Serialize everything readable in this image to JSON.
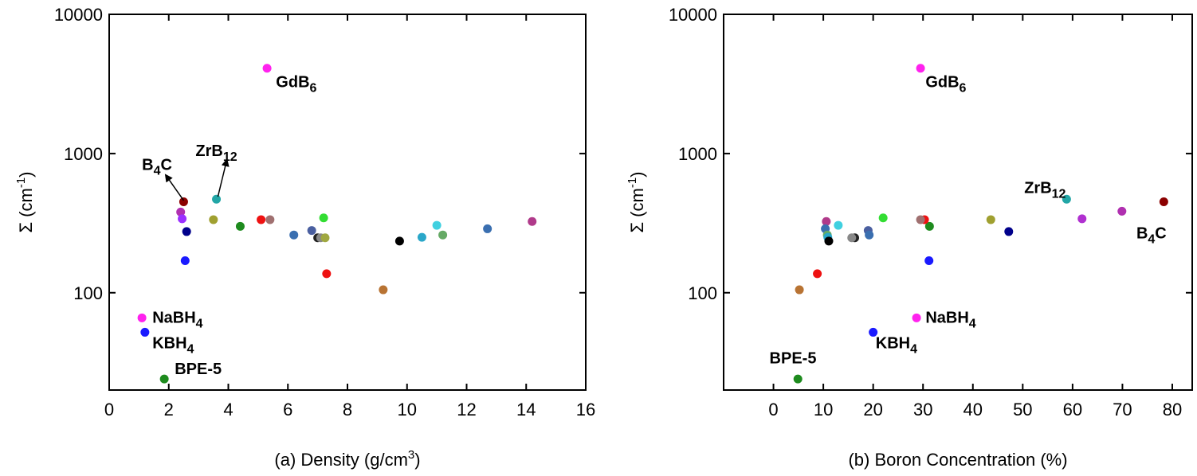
{
  "chart_data": [
    {
      "type": "scatter",
      "panel": "a",
      "xlabel": "(a) Density (g/cm3)",
      "ylabel": "Σ (cm-1)",
      "xlim": [
        0,
        16
      ],
      "ylim": [
        20,
        10000
      ],
      "yscale": "log",
      "xticks": [
        "0",
        "2",
        "4",
        "6",
        "8",
        "10",
        "12",
        "14",
        "16"
      ],
      "yticks": [
        "100",
        "1000",
        "10000"
      ],
      "grid": false,
      "points": [
        {
          "x": 5.3,
          "y": 4100,
          "color": "#ff22ee"
        },
        {
          "x": 2.5,
          "y": 450,
          "color": "#8b0000"
        },
        {
          "x": 3.6,
          "y": 470,
          "color": "#22a6a6"
        },
        {
          "x": 2.4,
          "y": 380,
          "color": "#b030b0"
        },
        {
          "x": 2.45,
          "y": 340,
          "color": "#9b30ff"
        },
        {
          "x": 2.6,
          "y": 275,
          "color": "#00008b"
        },
        {
          "x": 2.55,
          "y": 170,
          "color": "#1a1aff"
        },
        {
          "x": 3.5,
          "y": 335,
          "color": "#a0a030"
        },
        {
          "x": 4.4,
          "y": 300,
          "color": "#1e8b1e"
        },
        {
          "x": 5.1,
          "y": 335,
          "color": "#ee1111"
        },
        {
          "x": 5.4,
          "y": 335,
          "color": "#a07070"
        },
        {
          "x": 6.2,
          "y": 260,
          "color": "#3a6fb0"
        },
        {
          "x": 6.8,
          "y": 280,
          "color": "#4a5fa0"
        },
        {
          "x": 7.0,
          "y": 248,
          "color": "#222222"
        },
        {
          "x": 7.1,
          "y": 248,
          "color": "#888888"
        },
        {
          "x": 7.25,
          "y": 248,
          "color": "#a0a840"
        },
        {
          "x": 7.2,
          "y": 345,
          "color": "#33dd33"
        },
        {
          "x": 7.3,
          "y": 137,
          "color": "#ee1111"
        },
        {
          "x": 9.2,
          "y": 105,
          "color": "#b87333"
        },
        {
          "x": 9.75,
          "y": 235,
          "color": "#000000"
        },
        {
          "x": 10.5,
          "y": 250,
          "color": "#2aa7c9"
        },
        {
          "x": 11.0,
          "y": 305,
          "color": "#40d0e0"
        },
        {
          "x": 11.2,
          "y": 260,
          "color": "#66aa66"
        },
        {
          "x": 12.7,
          "y": 288,
          "color": "#3a6fb0"
        },
        {
          "x": 14.2,
          "y": 325,
          "color": "#b03a8a"
        },
        {
          "x": 1.1,
          "y": 66,
          "color": "#ff22ee"
        },
        {
          "x": 1.2,
          "y": 52,
          "color": "#1a1aff"
        },
        {
          "x": 1.85,
          "y": 24,
          "color": "#1e8b1e"
        }
      ],
      "annotations": [
        {
          "text": "GdB",
          "sub": "6",
          "x": 5.6,
          "y": 3000
        },
        {
          "text": "B",
          "sub": "4",
          "text2": "C",
          "x": 1.1,
          "y": 760
        },
        {
          "text": "ZrB",
          "sub": "12",
          "x": 2.9,
          "y": 960
        },
        {
          "text": "NaBH",
          "sub": "4",
          "x": 1.45,
          "y": 61
        },
        {
          "text": "KBH",
          "sub": "4",
          "x": 1.45,
          "y": 40
        },
        {
          "text": "BPE-5",
          "x": 2.2,
          "y": 26
        }
      ],
      "arrows": [
        {
          "from": [
            2.5,
            460
          ],
          "to": [
            1.9,
            700
          ]
        },
        {
          "from": [
            3.65,
            490
          ],
          "to": [
            3.95,
            900
          ]
        }
      ]
    },
    {
      "type": "scatter",
      "panel": "b",
      "xlabel": "(b) Boron Concentration (%)",
      "ylabel": "Σ (cm-1)",
      "xlim": [
        -10,
        84
      ],
      "ylim": [
        20,
        10000
      ],
      "yscale": "log",
      "xticks": [
        "0",
        "10",
        "20",
        "30",
        "40",
        "50",
        "60",
        "70",
        "80"
      ],
      "yticks": [
        "100",
        "1000",
        "10000"
      ],
      "grid": false,
      "points": [
        {
          "x": 29.5,
          "y": 4100,
          "color": "#ff22ee"
        },
        {
          "x": 58.8,
          "y": 470,
          "color": "#22a6a6"
        },
        {
          "x": 78.3,
          "y": 450,
          "color": "#8b0000"
        },
        {
          "x": 69.9,
          "y": 385,
          "color": "#b030b0"
        },
        {
          "x": 61.9,
          "y": 340,
          "color": "#b030d0"
        },
        {
          "x": 47.2,
          "y": 275,
          "color": "#00008b"
        },
        {
          "x": 43.6,
          "y": 335,
          "color": "#a0a030"
        },
        {
          "x": 31.3,
          "y": 300,
          "color": "#1e8b1e"
        },
        {
          "x": 31.2,
          "y": 170,
          "color": "#1a1aff"
        },
        {
          "x": 30.3,
          "y": 335,
          "color": "#ee1111"
        },
        {
          "x": 29.5,
          "y": 335,
          "color": "#a07070"
        },
        {
          "x": 22.0,
          "y": 345,
          "color": "#33dd33"
        },
        {
          "x": 19.0,
          "y": 280,
          "color": "#4a5fa0"
        },
        {
          "x": 19.2,
          "y": 260,
          "color": "#3a6fb0"
        },
        {
          "x": 16.3,
          "y": 248,
          "color": "#222222"
        },
        {
          "x": 15.7,
          "y": 248,
          "color": "#888888"
        },
        {
          "x": 13.0,
          "y": 305,
          "color": "#40d0e0"
        },
        {
          "x": 10.6,
          "y": 325,
          "color": "#b03a8a"
        },
        {
          "x": 10.4,
          "y": 288,
          "color": "#3a6fb0"
        },
        {
          "x": 10.8,
          "y": 260,
          "color": "#66aa66"
        },
        {
          "x": 10.9,
          "y": 250,
          "color": "#2aa7c9"
        },
        {
          "x": 11.1,
          "y": 235,
          "color": "#000000"
        },
        {
          "x": 8.8,
          "y": 137,
          "color": "#ee1111"
        },
        {
          "x": 5.2,
          "y": 105,
          "color": "#b87333"
        },
        {
          "x": 28.7,
          "y": 66,
          "color": "#ff22ee"
        },
        {
          "x": 20.0,
          "y": 52,
          "color": "#1a1aff"
        },
        {
          "x": 4.9,
          "y": 24,
          "color": "#1e8b1e"
        }
      ],
      "annotations": [
        {
          "text": "GdB",
          "sub": "6",
          "x": 30.5,
          "y": 3000
        },
        {
          "text": "ZrB",
          "sub": "12",
          "x": 50.3,
          "y": 520
        },
        {
          "text": "B",
          "sub": "4",
          "text2": "C",
          "x": 72.8,
          "y": 245
        },
        {
          "text": "NaBH",
          "sub": "4",
          "x": 30.5,
          "y": 61
        },
        {
          "text": "KBH",
          "sub": "4",
          "x": 20.5,
          "y": 40
        },
        {
          "text": "BPE-5",
          "x": -0.8,
          "y": 31
        }
      ]
    }
  ]
}
